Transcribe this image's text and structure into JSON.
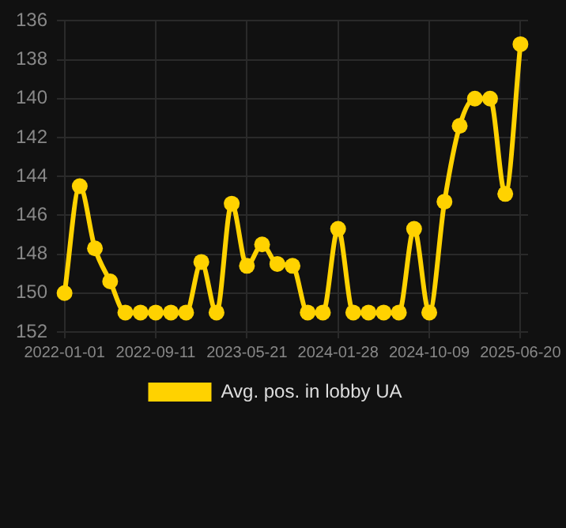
{
  "chart_data": {
    "type": "line",
    "categories": [
      "2022-01-01",
      null,
      null,
      null,
      null,
      null,
      "2022-09-11",
      null,
      null,
      null,
      null,
      null,
      "2023-05-21",
      null,
      null,
      null,
      null,
      null,
      "2024-01-28",
      null,
      null,
      null,
      null,
      null,
      "2024-10-09",
      null,
      null,
      null,
      null,
      null,
      "2025-06-20"
    ],
    "series": [
      {
        "name": "Avg. pos. in lobby UA",
        "color": "#ffd200",
        "values": [
          150,
          144.5,
          147.7,
          149.4,
          151,
          151,
          151,
          151,
          151,
          148.4,
          151,
          145.4,
          148.6,
          147.5,
          148.5,
          148.6,
          151,
          151,
          146.7,
          151,
          151,
          151,
          151,
          146.7,
          151,
          145.3,
          141.4,
          140,
          140,
          144.9,
          137.2
        ]
      }
    ],
    "ylim": [
      152,
      136
    ],
    "yticks": [
      136,
      138,
      140,
      142,
      144,
      146,
      148,
      150,
      152
    ],
    "grid": true,
    "legend": "bottom",
    "marker": "circle",
    "line_style": "solid"
  }
}
